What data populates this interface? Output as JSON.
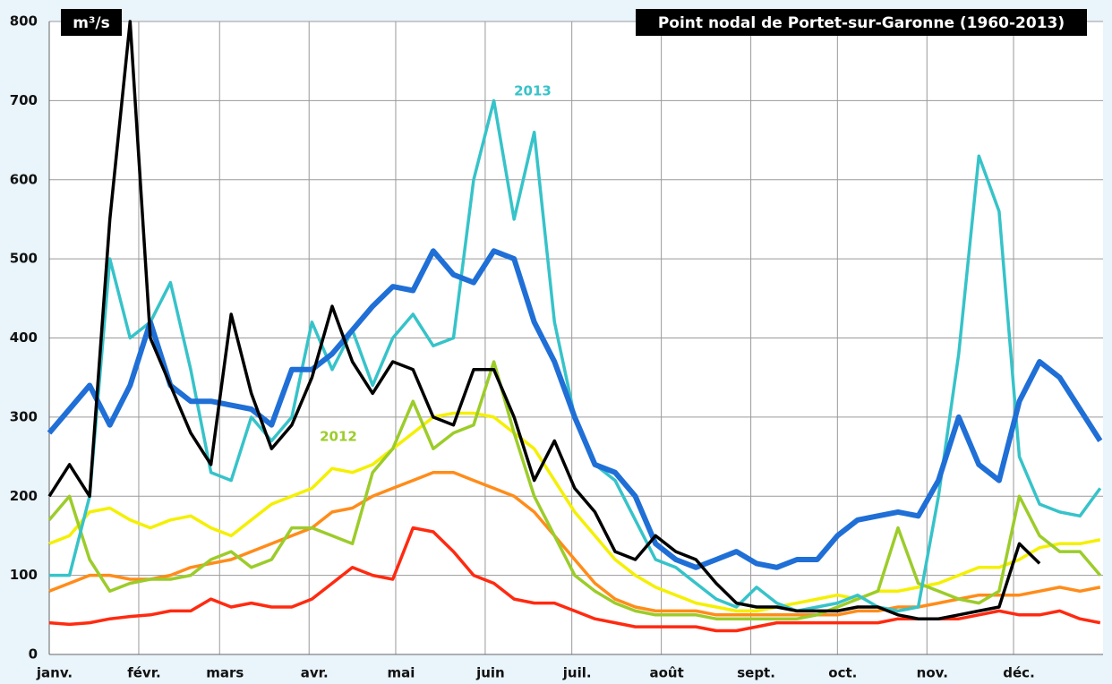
{
  "chart_data": {
    "type": "line",
    "title": "Point nodal de Portet-sur-Garonne (1960-2013)",
    "y_label": "m³/s",
    "x": [
      0,
      7,
      14,
      21,
      28,
      35,
      42,
      49,
      56,
      63,
      70,
      77,
      84,
      91,
      98,
      105,
      112,
      119,
      126,
      133,
      140,
      147,
      154,
      161,
      168,
      175,
      182,
      189,
      196,
      203,
      210,
      217,
      224,
      231,
      238,
      245,
      252,
      259,
      266,
      273,
      280,
      287,
      294,
      301,
      308,
      315,
      322,
      329,
      336,
      343,
      350,
      357,
      364
    ],
    "xlim": [
      0,
      365
    ],
    "xticks": [
      {
        "value": 0,
        "label": "janv."
      },
      {
        "value": 31,
        "label": "févr."
      },
      {
        "value": 59,
        "label": "mars"
      },
      {
        "value": 90,
        "label": "avr."
      },
      {
        "value": 120,
        "label": "mai"
      },
      {
        "value": 151,
        "label": "juin"
      },
      {
        "value": 181,
        "label": "juil."
      },
      {
        "value": 212,
        "label": "août"
      },
      {
        "value": 243,
        "label": "sept."
      },
      {
        "value": 273,
        "label": "oct."
      },
      {
        "value": 304,
        "label": "nov."
      },
      {
        "value": 334,
        "label": "déc."
      }
    ],
    "ylim": [
      0,
      800
    ],
    "yticks": [
      0,
      100,
      200,
      300,
      400,
      500,
      600,
      700,
      800
    ],
    "grid": true,
    "series": [
      {
        "color": "#ff2a10",
        "values": [
          40,
          38,
          40,
          45,
          48,
          50,
          55,
          55,
          70,
          60,
          65,
          60,
          60,
          70,
          90,
          110,
          100,
          95,
          160,
          155,
          130,
          100,
          90,
          70,
          65,
          65,
          55,
          45,
          40,
          35,
          35,
          35,
          35,
          30,
          30,
          35,
          40,
          40,
          40,
          40,
          40,
          40,
          45,
          45,
          45,
          45,
          50,
          55,
          50,
          50,
          55,
          45,
          40
        ]
      },
      {
        "color": "#ff8c1a",
        "values": [
          80,
          90,
          100,
          100,
          95,
          95,
          100,
          110,
          115,
          120,
          130,
          140,
          150,
          160,
          180,
          185,
          200,
          210,
          220,
          230,
          230,
          220,
          210,
          200,
          180,
          150,
          120,
          90,
          70,
          60,
          55,
          55,
          55,
          50,
          50,
          50,
          50,
          50,
          50,
          50,
          55,
          55,
          60,
          60,
          65,
          70,
          75,
          75,
          75,
          80,
          85,
          80,
          85
        ]
      },
      {
        "color": "#f4f000",
        "values": [
          140,
          150,
          180,
          185,
          170,
          160,
          170,
          175,
          160,
          150,
          170,
          190,
          200,
          210,
          235,
          230,
          240,
          260,
          280,
          300,
          305,
          305,
          300,
          280,
          260,
          220,
          180,
          150,
          120,
          100,
          85,
          75,
          65,
          60,
          55,
          55,
          60,
          65,
          70,
          75,
          70,
          80,
          80,
          85,
          90,
          100,
          110,
          110,
          120,
          135,
          140,
          140,
          145
        ]
      },
      {
        "name": "2012",
        "color": "#9ccc2a",
        "values": [
          170,
          200,
          120,
          80,
          90,
          95,
          95,
          100,
          120,
          130,
          110,
          120,
          160,
          160,
          150,
          140,
          230,
          260,
          320,
          260,
          280,
          290,
          370,
          280,
          200,
          150,
          100,
          80,
          65,
          55,
          50,
          50,
          50,
          45,
          45,
          45,
          45,
          45,
          50,
          60,
          70,
          80,
          160,
          90,
          80,
          70,
          65,
          80,
          200,
          150,
          130,
          130,
          100
        ]
      },
      {
        "name": "2013",
        "color": "#36c3c9",
        "values": [
          100,
          100,
          200,
          500,
          400,
          420,
          470,
          360,
          230,
          220,
          300,
          270,
          300,
          420,
          360,
          410,
          340,
          400,
          430,
          390,
          400,
          600,
          700,
          550,
          660,
          420,
          300,
          240,
          220,
          170,
          120,
          110,
          90,
          70,
          60,
          85,
          65,
          55,
          60,
          65,
          75,
          60,
          55,
          60,
          200,
          380,
          630,
          560,
          250,
          190,
          180,
          175,
          210
        ]
      },
      {
        "color": "#1f6fd6",
        "values": [
          280,
          310,
          340,
          290,
          340,
          420,
          340,
          320,
          320,
          315,
          310,
          290,
          360,
          360,
          380,
          410,
          440,
          465,
          460,
          510,
          480,
          470,
          510,
          500,
          420,
          370,
          300,
          240,
          230,
          200,
          140,
          120,
          110,
          120,
          130,
          115,
          110,
          120,
          120,
          150,
          170,
          175,
          180,
          175,
          220,
          300,
          240,
          220,
          320,
          370,
          350,
          310,
          270
        ]
      },
      {
        "color": "#000000",
        "values": [
          200,
          240,
          200,
          550,
          800,
          400,
          340,
          280,
          240,
          430,
          330,
          260,
          290,
          350,
          440,
          370,
          330,
          370,
          360,
          300,
          290,
          360,
          360,
          300,
          220,
          270,
          210,
          180,
          130,
          120,
          150,
          130,
          120,
          90,
          65,
          60,
          60,
          55,
          55,
          55,
          60,
          60,
          50,
          45,
          45,
          50,
          55,
          60,
          140,
          115,
          null,
          null,
          null
        ]
      }
    ]
  }
}
